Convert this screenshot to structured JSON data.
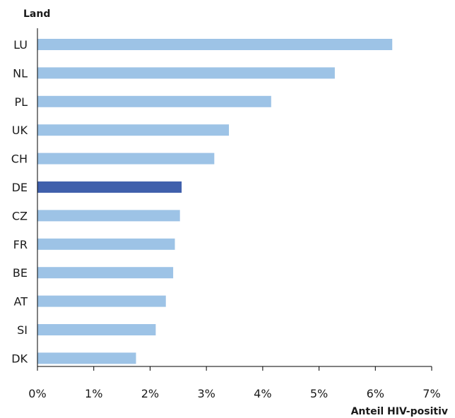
{
  "chart_data": {
    "type": "bar",
    "orientation": "horizontal",
    "y_axis_title": "Land",
    "x_axis_title": "Anteil HIV-positiv",
    "xlim": [
      0,
      7
    ],
    "x_ticks": [
      "0%",
      "1%",
      "2%",
      "3%",
      "4%",
      "5%",
      "6%",
      "7%"
    ],
    "grid": false,
    "categories": [
      "LU",
      "NL",
      "PL",
      "UK",
      "CH",
      "DE",
      "CZ",
      "FR",
      "BE",
      "AT",
      "SI",
      "DK"
    ],
    "values": [
      6.3,
      5.28,
      4.15,
      3.4,
      3.14,
      2.56,
      2.53,
      2.44,
      2.41,
      2.28,
      2.1,
      1.75
    ],
    "highlight": "DE",
    "colors": {
      "bar": "#9dc3e6",
      "highlight": "#4060ac",
      "axis": "#000000",
      "text": "#1a1a1a"
    }
  }
}
